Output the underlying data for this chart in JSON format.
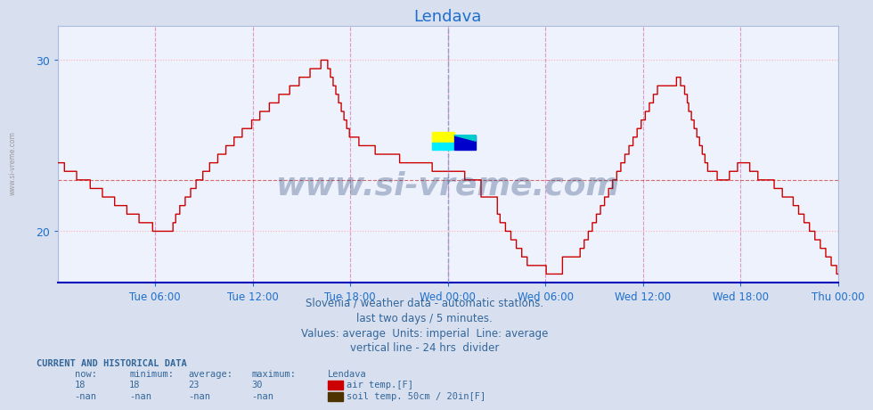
{
  "title": "Lendava",
  "title_color": "#1e6fcc",
  "bg_color": "#d8e0f0",
  "plot_bg_color": "#eef2fc",
  "line_color": "#cc0000",
  "line_width": 1.0,
  "ylim": [
    17.0,
    32.0
  ],
  "yticks": [
    20,
    30
  ],
  "xlabel_color": "#1e6fcc",
  "grid_color": "#ffb0b0",
  "avg_value": 23.0,
  "xtick_labels": [
    "Tue 06:00",
    "Tue 12:00",
    "Tue 18:00",
    "Wed 00:00",
    "Wed 06:00",
    "Wed 12:00",
    "Wed 18:00",
    "Thu 00:00"
  ],
  "footer_line1": "Slovenia / weather data - automatic stations.",
  "footer_line2": "last two days / 5 minutes.",
  "footer_line3": "Values: average  Units: imperial  Line: average",
  "footer_line4": "vertical line - 24 hrs  divider",
  "footer_color": "#336699",
  "legend_title": "Lendava",
  "legend_color1": "#cc0000",
  "legend_color2": "#4d3300",
  "legend_label1": "air temp.[F]",
  "legend_label2": "soil temp. 50cm / 20in[F]",
  "stats_now": "18",
  "stats_min": "18",
  "stats_avg": "23",
  "stats_max": "30",
  "stats_now2": "-nan",
  "stats_min2": "-nan",
  "stats_avg2": "-nan",
  "stats_max2": "-nan",
  "watermark": "www.si-vreme.com",
  "watermark_color": "#1a3a6e",
  "sidebar_text": "www.si-vreme.com"
}
